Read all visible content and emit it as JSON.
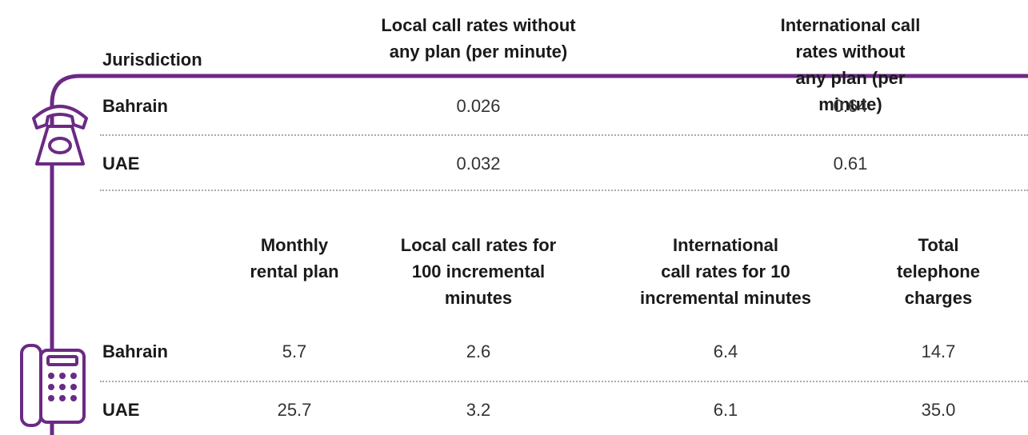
{
  "tables": [
    {
      "header": [
        "Jurisdiction",
        "Local call rates without\nany plan (per minute)",
        "International call rates without\nany plan (per minute)"
      ],
      "rows": [
        [
          "Bahrain",
          "0.026",
          "0.64"
        ],
        [
          "UAE",
          "0.032",
          "0.61"
        ]
      ]
    },
    {
      "header": [
        "Monthly\nrental plan",
        "Local call rates for\n100 incremental\nminutes",
        "International\ncall rates for 10\nincremental minutes",
        "Total telephone\ncharges"
      ],
      "rows": [
        [
          "Bahrain",
          "5.7",
          "2.6",
          "6.4",
          "14.7"
        ],
        [
          "UAE",
          "25.7",
          "3.2",
          "6.1",
          "35.0"
        ]
      ]
    }
  ]
}
